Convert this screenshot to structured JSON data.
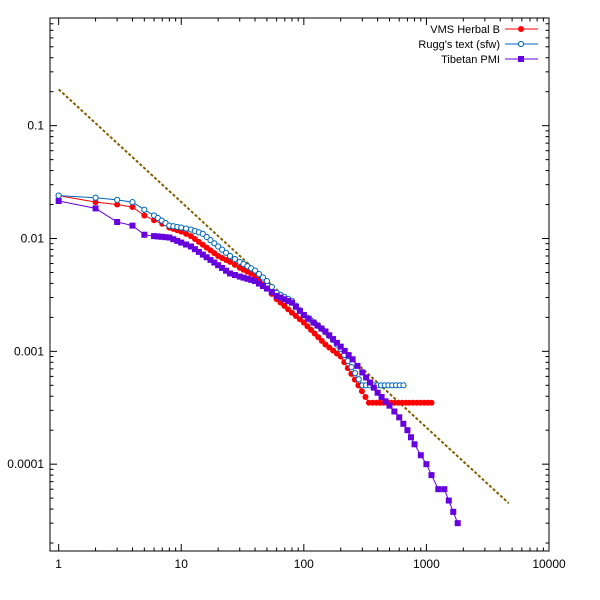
{
  "chart_data": {
    "type": "scatter",
    "title": "",
    "xlabel": "",
    "ylabel": "",
    "x_scale": "log",
    "y_scale": "log",
    "xlim": [
      0.85,
      10000
    ],
    "ylim": [
      1.7e-05,
      0.9
    ],
    "x_ticks": [
      {
        "value": 1,
        "label": "1"
      },
      {
        "value": 10,
        "label": "10"
      },
      {
        "value": 100,
        "label": "100"
      },
      {
        "value": 1000,
        "label": "1000"
      },
      {
        "value": 10000,
        "label": "10000"
      }
    ],
    "y_ticks": [
      {
        "value": 0.0001,
        "label": "0.0001"
      },
      {
        "value": 0.001,
        "label": "0.001"
      },
      {
        "value": 0.01,
        "label": "0.01"
      },
      {
        "value": 0.1,
        "label": "0.1"
      }
    ],
    "grid": false,
    "legend_position": "top-right",
    "series": [
      {
        "name": "VMS Herbal B",
        "color": "#ff0000",
        "marker": "filled-circle",
        "x": [
          1,
          2,
          3,
          4,
          5,
          6,
          7,
          8,
          10,
          12,
          15,
          20,
          25,
          30,
          40,
          50,
          60,
          80,
          100,
          150,
          200,
          340,
          1100
        ],
        "y": [
          0.024,
          0.021,
          0.02,
          0.019,
          0.016,
          0.0145,
          0.0135,
          0.0125,
          0.0115,
          0.0105,
          0.0088,
          0.007,
          0.0062,
          0.0055,
          0.0047,
          0.0036,
          0.0029,
          0.0022,
          0.0018,
          0.00115,
          0.0009,
          0.00035,
          0.00035
        ]
      },
      {
        "name": "Rugg's text (sfw)",
        "color": "#0066bb",
        "marker": "open-circle",
        "x": [
          1,
          2,
          3,
          4,
          5,
          6,
          8,
          10,
          12,
          15,
          20,
          25,
          30,
          40,
          50,
          60,
          80,
          100,
          150,
          200,
          300,
          650
        ],
        "y": [
          0.024,
          0.023,
          0.022,
          0.021,
          0.018,
          0.016,
          0.013,
          0.0125,
          0.012,
          0.011,
          0.0085,
          0.007,
          0.0062,
          0.0052,
          0.0042,
          0.0033,
          0.0028,
          0.0021,
          0.0015,
          0.00105,
          0.0005,
          0.0005
        ]
      },
      {
        "name": "Tibetan PMI",
        "color": "#6600dd",
        "marker": "filled-square",
        "x": [
          1,
          2,
          3,
          4,
          5,
          6,
          8,
          10,
          12,
          15,
          20,
          25,
          30,
          40,
          50,
          60,
          80,
          100,
          120,
          150,
          200,
          250,
          300,
          400,
          500,
          600,
          700,
          800,
          900,
          1000,
          1100,
          1250,
          1400,
          1800
        ],
        "y": [
          0.0215,
          0.0185,
          0.014,
          0.013,
          0.0108,
          0.0105,
          0.0102,
          0.0092,
          0.0085,
          0.0072,
          0.0058,
          0.0049,
          0.0046,
          0.0042,
          0.0036,
          0.0031,
          0.0027,
          0.0021,
          0.0018,
          0.0015,
          0.0011,
          0.00085,
          0.00065,
          0.00043,
          0.00033,
          0.00026,
          0.0002,
          0.00015,
          0.00012,
          0.0001,
          8e-05,
          6e-05,
          6e-05,
          3e-05
        ]
      }
    ],
    "reference_line": {
      "color": "#806000",
      "style": "dashed",
      "x": [
        1,
        4700
      ],
      "y": [
        0.21,
        4.5e-05
      ]
    }
  }
}
